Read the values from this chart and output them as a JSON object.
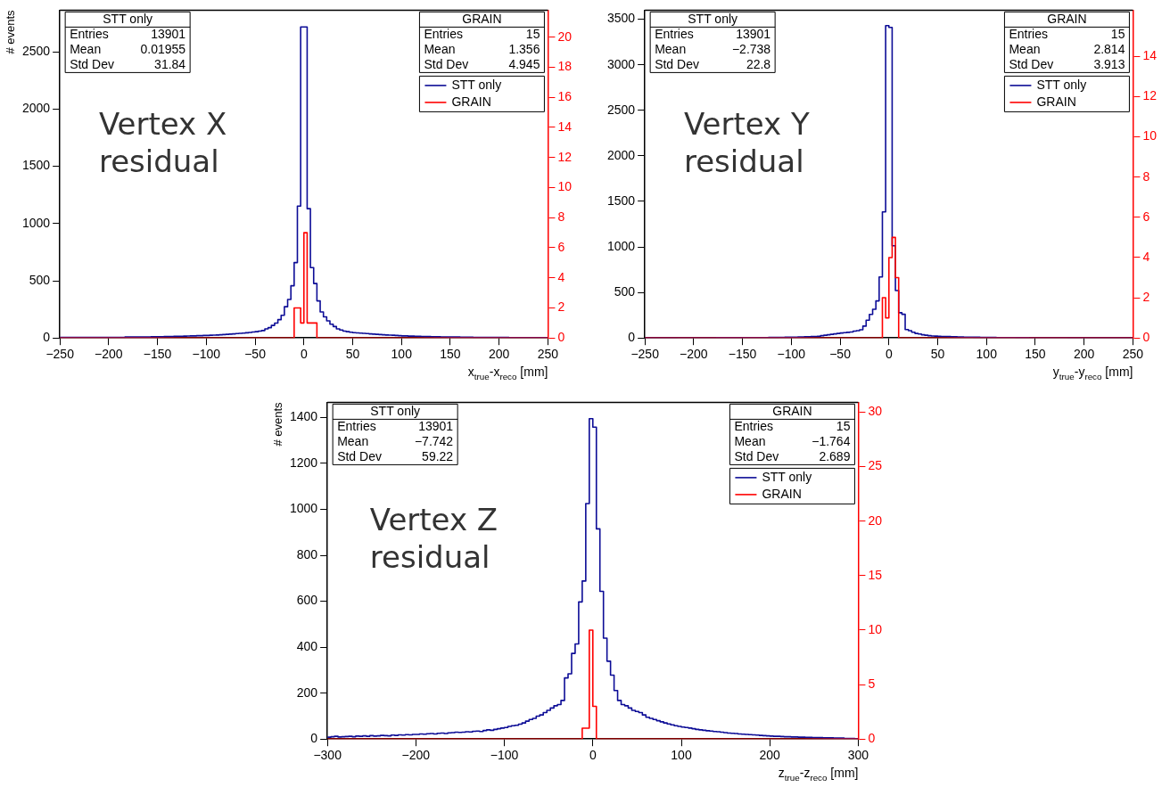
{
  "chart_data": [
    {
      "type": "histogram",
      "xlabel": "x$_{true}$-x$_{reco}$ [mm]",
      "ylabel": "# events",
      "legend": "top right",
      "annotations": [
        "Vertex X residual",
        "STT only",
        "Entries 13901",
        "Mean 0.01955",
        "Std Dev 31.84",
        "GRAIN",
        "Entries 15",
        "Mean 1.356",
        "Std Dev 4.945"
      ],
      "bins": [
        -250,
        -246.67,
        -243.33,
        -240,
        -236.67,
        -233.33,
        -230,
        -226.67,
        -223.33,
        -220,
        -216.67,
        -213.33,
        -210,
        -206.67,
        -203.33,
        -200,
        -196.67,
        -193.33,
        -190,
        -186.67,
        -183.33,
        -180,
        -176.67,
        -173.33,
        -170,
        -166.67,
        -163.33,
        -160,
        -156.67,
        -153.33,
        -150,
        -146.67,
        -143.33,
        -140,
        -136.67,
        -133.33,
        -130,
        -126.67,
        -123.33,
        -120,
        -116.67,
        -113.33,
        -110,
        -106.67,
        -103.33,
        -100,
        -96.67,
        -93.33,
        -90,
        -86.67,
        -83.33,
        -80,
        -76.67,
        -73.33,
        -70,
        -66.67,
        -63.33,
        -60,
        -56.67,
        -53.33,
        -50,
        -46.67,
        -43.33,
        -40,
        -36.67,
        -33.33,
        -30,
        -26.67,
        -23.33,
        -20,
        -16.67,
        -13.33,
        -10,
        -6.67,
        -3.33,
        0,
        3.33,
        6.67,
        10,
        13.33,
        16.67,
        20,
        23.33,
        26.67,
        30,
        33.33,
        36.67,
        40,
        43.33,
        46.67,
        50,
        53.33,
        56.67,
        60,
        63.33,
        66.67,
        70,
        73.33,
        76.67,
        80,
        83.33,
        86.67,
        90,
        93.33,
        96.67,
        100,
        103.33,
        106.67,
        110,
        113.33,
        116.67,
        120,
        123.33,
        126.67,
        130,
        133.33,
        136.67,
        140,
        143.33,
        146.67,
        150,
        153.33,
        156.67,
        160,
        163.33,
        166.67,
        170,
        173.33,
        176.67,
        180,
        183.33,
        186.67,
        190,
        193.33,
        196.67,
        200,
        203.33,
        206.67,
        210,
        213.33,
        216.67,
        220,
        223.33,
        226.67,
        230,
        233.33,
        236.67,
        240,
        243.33,
        246.67,
        250
      ],
      "series": [
        {
          "name": "STT only",
          "color": "#0c0c96",
          "values": [
            5,
            5,
            5,
            5,
            5,
            5,
            5,
            5,
            5,
            5,
            6,
            6,
            6,
            6,
            6,
            6,
            6,
            6,
            6,
            6,
            8,
            8,
            8,
            8,
            8,
            8,
            8,
            8,
            10,
            10,
            10,
            10,
            12,
            12,
            12,
            14,
            14,
            15,
            16,
            17,
            18,
            18,
            20,
            20,
            22,
            22,
            24,
            25,
            26,
            28,
            30,
            32,
            34,
            36,
            38,
            40,
            42,
            45,
            48,
            52,
            55,
            60,
            65,
            80,
            90,
            110,
            130,
            160,
            198,
            273,
            337,
            456,
            659,
            1153,
            2718,
            2718,
            1130,
            615,
            476,
            324,
            228,
            185,
            150,
            120,
            100,
            80,
            70,
            60,
            55,
            50,
            46,
            44,
            42,
            40,
            38,
            36,
            34,
            32,
            30,
            28,
            26,
            25,
            24,
            22,
            20,
            18,
            18,
            16,
            16,
            15,
            14,
            13,
            12,
            12,
            11,
            10,
            10,
            9,
            9,
            8,
            8,
            8,
            8,
            7,
            7,
            7,
            7,
            6,
            6,
            6,
            6,
            6,
            5,
            5,
            5,
            5,
            5,
            5,
            4,
            4,
            4,
            4,
            4,
            4,
            4,
            3,
            3,
            3,
            3,
            3
          ]
        },
        {
          "name": "GRAIN",
          "color": "#ff0000",
          "axis": "y2",
          "values": [
            0,
            0,
            0,
            0,
            0,
            0,
            0,
            0,
            0,
            0,
            0,
            0,
            0,
            0,
            0,
            0,
            0,
            0,
            0,
            0,
            0,
            0,
            0,
            0,
            0,
            0,
            0,
            0,
            0,
            0,
            0,
            0,
            0,
            0,
            0,
            0,
            0,
            0,
            0,
            0,
            0,
            0,
            0,
            0,
            0,
            0,
            0,
            0,
            0,
            0,
            0,
            0,
            0,
            0,
            0,
            0,
            0,
            0,
            0,
            0,
            0,
            0,
            0,
            0,
            0,
            0,
            0,
            0,
            0,
            0,
            0,
            0,
            2,
            2,
            1,
            7,
            1,
            1,
            1,
            0,
            0,
            0,
            0,
            0,
            0,
            0,
            0,
            0,
            0,
            0,
            0,
            0,
            0,
            0,
            0,
            0,
            0,
            0,
            0,
            0,
            0,
            0,
            0,
            0,
            0,
            0,
            0,
            0,
            0,
            0,
            0,
            0,
            0,
            0,
            0,
            0,
            0,
            0,
            0,
            0,
            0,
            0,
            0,
            0,
            0,
            0,
            0,
            0,
            0,
            0,
            0,
            0,
            0,
            0,
            0,
            0,
            0,
            0,
            0,
            0,
            0,
            0,
            0,
            0,
            0,
            0,
            0,
            0,
            0,
            0
          ]
        }
      ],
      "xlim": [
        -250,
        250
      ],
      "xticks": [
        -250,
        -200,
        -150,
        -100,
        -50,
        0,
        50,
        100,
        150,
        200,
        250
      ],
      "ylim": [
        0,
        2865
      ],
      "yticks": [
        0,
        500,
        1000,
        1500,
        2000,
        2500
      ],
      "y2lim": [
        0,
        21.8
      ],
      "y2ticks": [
        0,
        2,
        4,
        6,
        8,
        10,
        12,
        14,
        16,
        18,
        20
      ]
    },
    {
      "type": "histogram",
      "xlabel": "y$_{true}$-y$_{reco}$ [mm]",
      "legend": "top right",
      "annotations": [
        "Vertex Y residual",
        "STT only",
        "Entries 13901",
        "Mean −2.738",
        "Std Dev 22.8",
        "GRAIN",
        "Entries 15",
        "Mean 2.814",
        "Std Dev 3.913"
      ],
      "bins": [
        -250,
        -246.67,
        -243.33,
        -240,
        -236.67,
        -233.33,
        -230,
        -226.67,
        -223.33,
        -220,
        -216.67,
        -213.33,
        -210,
        -206.67,
        -203.33,
        -200,
        -196.67,
        -193.33,
        -190,
        -186.67,
        -183.33,
        -180,
        -176.67,
        -173.33,
        -170,
        -166.67,
        -163.33,
        -160,
        -156.67,
        -153.33,
        -150,
        -146.67,
        -143.33,
        -140,
        -136.67,
        -133.33,
        -130,
        -126.67,
        -123.33,
        -120,
        -116.67,
        -113.33,
        -110,
        -106.67,
        -103.33,
        -100,
        -96.67,
        -93.33,
        -90,
        -86.67,
        -83.33,
        -80,
        -76.67,
        -73.33,
        -70,
        -66.67,
        -63.33,
        -60,
        -56.67,
        -53.33,
        -50,
        -46.67,
        -43.33,
        -40,
        -36.67,
        -33.33,
        -30,
        -26.67,
        -23.33,
        -20,
        -16.67,
        -13.33,
        -10,
        -6.67,
        -3.33,
        0,
        3.33,
        6.67,
        10,
        13.33,
        16.67,
        20,
        23.33,
        26.67,
        30,
        33.33,
        36.67,
        40,
        43.33,
        46.67,
        50,
        53.33,
        56.67,
        60,
        63.33,
        66.67,
        70,
        73.33,
        76.67,
        80,
        83.33,
        86.67,
        90,
        93.33,
        96.67,
        100,
        103.33,
        106.67,
        110,
        113.33,
        116.67,
        120,
        123.33,
        126.67,
        130,
        133.33,
        136.67,
        140,
        143.33,
        146.67,
        150,
        153.33,
        156.67,
        160,
        163.33,
        166.67,
        170,
        173.33,
        176.67,
        180,
        183.33,
        186.67,
        190,
        193.33,
        196.67,
        200,
        203.33,
        206.67,
        210,
        213.33,
        216.67,
        220,
        223.33,
        226.67,
        230,
        233.33,
        236.67,
        240,
        243.33,
        246.67,
        250
      ],
      "series": [
        {
          "name": "STT only",
          "color": "#0c0c96",
          "values": [
            1,
            1,
            1,
            1,
            1,
            1,
            1,
            1,
            1,
            1,
            2,
            2,
            2,
            2,
            2,
            2,
            2,
            2,
            2,
            2,
            2,
            2,
            3,
            3,
            3,
            3,
            3,
            3,
            3,
            3,
            4,
            4,
            4,
            4,
            5,
            5,
            5,
            5,
            6,
            6,
            6,
            7,
            7,
            8,
            8,
            9,
            10,
            11,
            12,
            13,
            14,
            15,
            16,
            18,
            25,
            30,
            35,
            40,
            45,
            50,
            55,
            58,
            62,
            65,
            75,
            80,
            90,
            130,
            196,
            259,
            315,
            407,
            670,
            1384,
            3430,
            3410,
            1012,
            520,
            277,
            260,
            92,
            81,
            63,
            50,
            44,
            35,
            30,
            25,
            22,
            20,
            18,
            17,
            16,
            15,
            14,
            13,
            12,
            11,
            10,
            9,
            9,
            8,
            8,
            7,
            7,
            6,
            6,
            6,
            5,
            5,
            5,
            4,
            4,
            4,
            3,
            3,
            3,
            3,
            2,
            2,
            2,
            2,
            2,
            2,
            2,
            2,
            2,
            2,
            2,
            2,
            1,
            1,
            1,
            1,
            1,
            1,
            1,
            1,
            1,
            1,
            1,
            1,
            1,
            1,
            1,
            1,
            1,
            1,
            1,
            1
          ]
        },
        {
          "name": "GRAIN",
          "color": "#ff0000",
          "axis": "y2",
          "values": [
            0,
            0,
            0,
            0,
            0,
            0,
            0,
            0,
            0,
            0,
            0,
            0,
            0,
            0,
            0,
            0,
            0,
            0,
            0,
            0,
            0,
            0,
            0,
            0,
            0,
            0,
            0,
            0,
            0,
            0,
            0,
            0,
            0,
            0,
            0,
            0,
            0,
            0,
            0,
            0,
            0,
            0,
            0,
            0,
            0,
            0,
            0,
            0,
            0,
            0,
            0,
            0,
            0,
            0,
            0,
            0,
            0,
            0,
            0,
            0,
            0,
            0,
            0,
            0,
            0,
            0,
            0,
            0,
            0,
            0,
            0,
            0,
            0,
            2,
            1,
            4,
            5,
            3,
            0,
            0,
            0,
            0,
            0,
            0,
            0,
            0,
            0,
            0,
            0,
            0,
            0,
            0,
            0,
            0,
            0,
            0,
            0,
            0,
            0,
            0,
            0,
            0,
            0,
            0,
            0,
            0,
            0,
            0,
            0,
            0,
            0,
            0,
            0,
            0,
            0,
            0,
            0,
            0,
            0,
            0,
            0,
            0,
            0,
            0,
            0,
            0,
            0,
            0,
            0,
            0,
            0,
            0,
            0,
            0,
            0,
            0,
            0,
            0,
            0,
            0,
            0,
            0,
            0,
            0,
            0,
            0,
            0,
            0,
            0,
            0
          ]
        }
      ],
      "xlim": [
        -250,
        250
      ],
      "xticks": [
        -250,
        -200,
        -150,
        -100,
        -50,
        0,
        50,
        100,
        150,
        200,
        250
      ],
      "ylim": [
        0,
        3600
      ],
      "yticks": [
        0,
        500,
        1000,
        1500,
        2000,
        2500,
        3000,
        3500
      ],
      "y2lim": [
        0,
        16.3
      ],
      "y2ticks": [
        0,
        2,
        4,
        6,
        8,
        10,
        12,
        14
      ]
    },
    {
      "type": "histogram",
      "xlabel": "z$_{true}$-z$_{reco}$ [mm]",
      "ylabel": "# events",
      "legend": "top right",
      "annotations": [
        "Vertex Z residual",
        "STT only",
        "Entries 13901",
        "Mean −7.742",
        "Std Dev 59.22",
        "GRAIN",
        "Entries 15",
        "Mean −1.764",
        "Std Dev 2.689"
      ],
      "bins": [
        -300,
        -296,
        -292,
        -288,
        -284,
        -280,
        -276,
        -272,
        -268,
        -264,
        -260,
        -256,
        -252,
        -248,
        -244,
        -240,
        -236,
        -232,
        -228,
        -224,
        -220,
        -216,
        -212,
        -208,
        -204,
        -200,
        -196,
        -192,
        -188,
        -184,
        -180,
        -176,
        -172,
        -168,
        -164,
        -160,
        -156,
        -152,
        -148,
        -144,
        -140,
        -136,
        -132,
        -128,
        -124,
        -120,
        -116,
        -112,
        -108,
        -104,
        -100,
        -96,
        -92,
        -88,
        -84,
        -80,
        -76,
        -72,
        -68,
        -64,
        -60,
        -56,
        -52,
        -48,
        -44,
        -40,
        -36,
        -32,
        -28,
        -24,
        -20,
        -16,
        -12,
        -8,
        -4,
        0,
        4,
        8,
        12,
        16,
        20,
        24,
        28,
        32,
        36,
        40,
        44,
        48,
        52,
        56,
        60,
        64,
        68,
        72,
        76,
        80,
        84,
        88,
        92,
        96,
        100,
        104,
        108,
        112,
        116,
        120,
        124,
        128,
        132,
        136,
        140,
        144,
        148,
        152,
        156,
        160,
        164,
        168,
        172,
        176,
        180,
        184,
        188,
        192,
        196,
        200,
        204,
        208,
        212,
        216,
        220,
        224,
        228,
        232,
        236,
        240,
        244,
        248,
        252,
        256,
        260,
        264,
        268,
        272,
        276,
        280,
        284,
        288,
        292,
        296,
        300
      ],
      "series": [
        {
          "name": "STT only",
          "color": "#0c0c96",
          "values": [
            8,
            10,
            12,
            9,
            10,
            11,
            12,
            10,
            13,
            12,
            14,
            12,
            15,
            13,
            14,
            16,
            15,
            14,
            17,
            16,
            18,
            17,
            19,
            18,
            20,
            20,
            22,
            21,
            23,
            24,
            22,
            25,
            26,
            24,
            27,
            28,
            30,
            29,
            30,
            32,
            31,
            34,
            35,
            33,
            37,
            40,
            38,
            42,
            45,
            48,
            50,
            55,
            58,
            60,
            65,
            70,
            78,
            85,
            90,
            100,
            105,
            115,
            125,
            135,
            145,
            150,
            168,
            266,
            284,
            373,
            414,
            597,
            688,
            1025,
            1395,
            1358,
            915,
            643,
            439,
            339,
            278,
            211,
            168,
            150,
            145,
            135,
            125,
            120,
            115,
            105,
            95,
            90,
            85,
            80,
            75,
            70,
            66,
            62,
            58,
            55,
            52,
            50,
            48,
            45,
            42,
            40,
            38,
            36,
            35,
            33,
            32,
            30,
            28,
            26,
            25,
            24,
            22,
            21,
            20,
            19,
            18,
            17,
            16,
            15,
            14,
            13,
            12,
            12,
            11,
            10,
            10,
            9,
            9,
            8,
            8,
            7,
            7,
            6,
            6,
            6,
            5,
            5,
            5,
            4,
            4,
            4,
            3,
            3,
            3,
            2
          ]
        },
        {
          "name": "GRAIN",
          "color": "#ff0000",
          "axis": "y2",
          "values": [
            0,
            0,
            0,
            0,
            0,
            0,
            0,
            0,
            0,
            0,
            0,
            0,
            0,
            0,
            0,
            0,
            0,
            0,
            0,
            0,
            0,
            0,
            0,
            0,
            0,
            0,
            0,
            0,
            0,
            0,
            0,
            0,
            0,
            0,
            0,
            0,
            0,
            0,
            0,
            0,
            0,
            0,
            0,
            0,
            0,
            0,
            0,
            0,
            0,
            0,
            0,
            0,
            0,
            0,
            0,
            0,
            0,
            0,
            0,
            0,
            0,
            0,
            0,
            0,
            0,
            0,
            0,
            0,
            0,
            0,
            0,
            0,
            1,
            1,
            10,
            3,
            0,
            0,
            0,
            0,
            0,
            0,
            0,
            0,
            0,
            0,
            0,
            0,
            0,
            0,
            0,
            0,
            0,
            0,
            0,
            0,
            0,
            0,
            0,
            0,
            0,
            0,
            0,
            0,
            0,
            0,
            0,
            0,
            0,
            0,
            0,
            0,
            0,
            0,
            0,
            0,
            0,
            0,
            0,
            0,
            0,
            0,
            0,
            0,
            0,
            0,
            0,
            0,
            0,
            0,
            0,
            0,
            0,
            0,
            0,
            0,
            0,
            0,
            0,
            0,
            0,
            0,
            0,
            0,
            0,
            0,
            0,
            0,
            0,
            0
          ]
        }
      ],
      "xlim": [
        -300,
        300
      ],
      "xticks": [
        -300,
        -200,
        -100,
        0,
        100,
        200,
        300
      ],
      "ylim": [
        0,
        1466
      ],
      "yticks": [
        0,
        200,
        400,
        600,
        800,
        1000,
        1200,
        1400
      ],
      "y2lim": [
        0,
        30.9
      ],
      "y2ticks": [
        0,
        5,
        10,
        15,
        20,
        25,
        30
      ]
    }
  ]
}
